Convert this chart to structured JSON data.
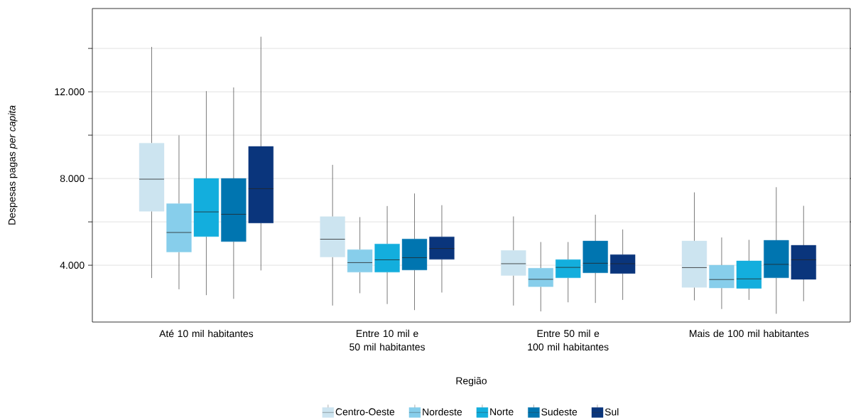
{
  "chart_data": {
    "type": "box",
    "xlabel": "Região",
    "ylabel": "Despesas pagas *per capita*",
    "categories": [
      "Até 10 mil habitantes",
      "Entre 10 mil e 50 mil habitantes",
      "Entre 50 mil e 100 mil habitantes",
      "Mais de 100 mil habitantes"
    ],
    "ylim": [
      1380,
      15840
    ],
    "yticks": [
      {
        "value": 4000,
        "label": "4.000"
      },
      {
        "value": 6000,
        "label": null
      },
      {
        "value": 8000,
        "label": "8.000"
      },
      {
        "value": 10000,
        "label": null
      },
      {
        "value": 12000,
        "label": "12.000"
      },
      {
        "value": 14000,
        "label": null
      }
    ],
    "grid": "y",
    "legend": "bottom",
    "series": [
      {
        "name": "Centro-Oeste",
        "color": "#cce4f0",
        "boxes": [
          {
            "low": 3410,
            "q1": 6490,
            "median": 7970,
            "q3": 9630,
            "high": 14070
          },
          {
            "low": 2140,
            "q1": 4380,
            "median": 5200,
            "q3": 6240,
            "high": 8630
          },
          {
            "low": 2140,
            "q1": 3530,
            "median": 4070,
            "q3": 4680,
            "high": 6250
          },
          {
            "low": 2380,
            "q1": 2980,
            "median": 3890,
            "q3": 5120,
            "high": 7360
          }
        ]
      },
      {
        "name": "Nordeste",
        "color": "#87ceeb",
        "boxes": [
          {
            "low": 2890,
            "q1": 4610,
            "median": 5510,
            "q3": 6840,
            "high": 9990
          },
          {
            "low": 2710,
            "q1": 3680,
            "median": 4120,
            "q3": 4720,
            "high": 6220
          },
          {
            "low": 1870,
            "q1": 3010,
            "median": 3350,
            "q3": 3860,
            "high": 5070
          },
          {
            "low": 1980,
            "q1": 2950,
            "median": 3340,
            "q3": 4000,
            "high": 5280
          }
        ]
      },
      {
        "name": "Norte",
        "color": "#13aedd",
        "boxes": [
          {
            "low": 2620,
            "q1": 5320,
            "median": 6460,
            "q3": 8000,
            "high": 12030
          },
          {
            "low": 2210,
            "q1": 3680,
            "median": 4250,
            "q3": 4980,
            "high": 6730
          },
          {
            "low": 2290,
            "q1": 3420,
            "median": 3900,
            "q3": 4260,
            "high": 5070
          },
          {
            "low": 2400,
            "q1": 2930,
            "median": 3370,
            "q3": 4200,
            "high": 5170
          }
        ]
      },
      {
        "name": "Sudeste",
        "color": "#0075b0",
        "boxes": [
          {
            "low": 2450,
            "q1": 5090,
            "median": 6350,
            "q3": 8000,
            "high": 12200
          },
          {
            "low": 1930,
            "q1": 3780,
            "median": 4350,
            "q3": 5210,
            "high": 7310
          },
          {
            "low": 2260,
            "q1": 3650,
            "median": 4090,
            "q3": 5120,
            "high": 6330
          },
          {
            "low": 1760,
            "q1": 3420,
            "median": 4040,
            "q3": 5150,
            "high": 7600
          }
        ]
      },
      {
        "name": "Sul",
        "color": "#0a357c",
        "boxes": [
          {
            "low": 3760,
            "q1": 5950,
            "median": 7530,
            "q3": 9480,
            "high": 14540
          },
          {
            "low": 2740,
            "q1": 4270,
            "median": 4770,
            "q3": 5310,
            "high": 6770
          },
          {
            "low": 2400,
            "q1": 3620,
            "median": 4070,
            "q3": 4490,
            "high": 5650
          },
          {
            "low": 2340,
            "q1": 3350,
            "median": 4250,
            "q3": 4920,
            "high": 6740
          }
        ]
      }
    ]
  }
}
